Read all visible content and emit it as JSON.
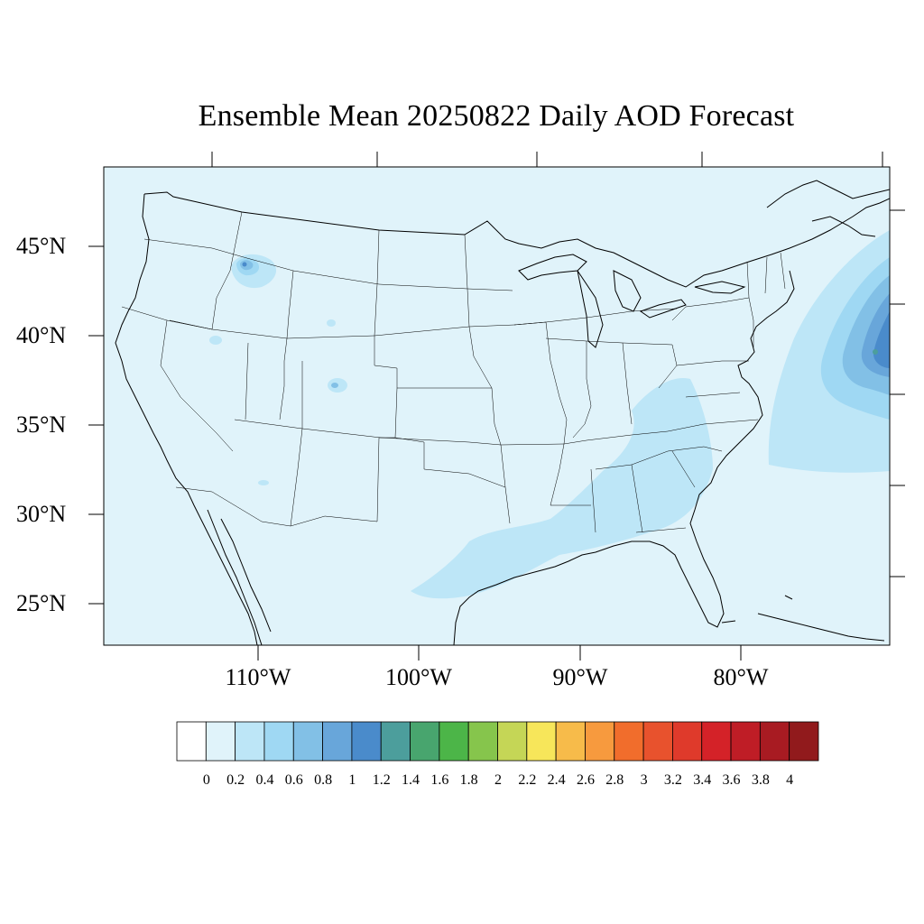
{
  "title": "Ensemble Mean 20250822 Daily AOD Forecast",
  "map": {
    "projection": "lambert-conformal",
    "region": "contiguous United States",
    "background_color": "#e0f3fa",
    "lat_labels": [
      "45°N",
      "40°N",
      "35°N",
      "30°N",
      "25°N"
    ],
    "lon_labels": [
      "110°W",
      "100°W",
      "90°W",
      "80°W"
    ],
    "features": [
      {
        "name": "atlantic-aod-plume",
        "peak_value": 1.2,
        "location": "off mid-Atlantic coast"
      },
      {
        "name": "southeast-aod-band",
        "peak_value": 0.4,
        "location": "Gulf coast to Appalachians"
      },
      {
        "name": "idaho-aod-spot",
        "peak_value": 1.0,
        "location": "central Idaho"
      },
      {
        "name": "colorado-aod-spot",
        "peak_value": 0.6,
        "location": "central Colorado"
      }
    ]
  },
  "colorbar": {
    "colors": [
      "#ffffff",
      "#e0f3fa",
      "#bde6f7",
      "#9fd8f3",
      "#82c0e6",
      "#68a6da",
      "#4a8bcb",
      "#4c9e9c",
      "#48a56e",
      "#4cb548",
      "#86c54c",
      "#c5d656",
      "#f7e65a",
      "#f7bb4a",
      "#f79a3e",
      "#f16d2c",
      "#e8522d",
      "#df3a2b",
      "#d42228",
      "#bf1d26",
      "#a81b22",
      "#911a1c"
    ],
    "labels": [
      "0",
      "0.2",
      "0.4",
      "0.6",
      "0.8",
      "1",
      "1.2",
      "1.4",
      "1.6",
      "1.8",
      "2",
      "2.2",
      "2.4",
      "2.6",
      "2.8",
      "3",
      "3.2",
      "3.4",
      "3.6",
      "3.8",
      "4"
    ]
  }
}
